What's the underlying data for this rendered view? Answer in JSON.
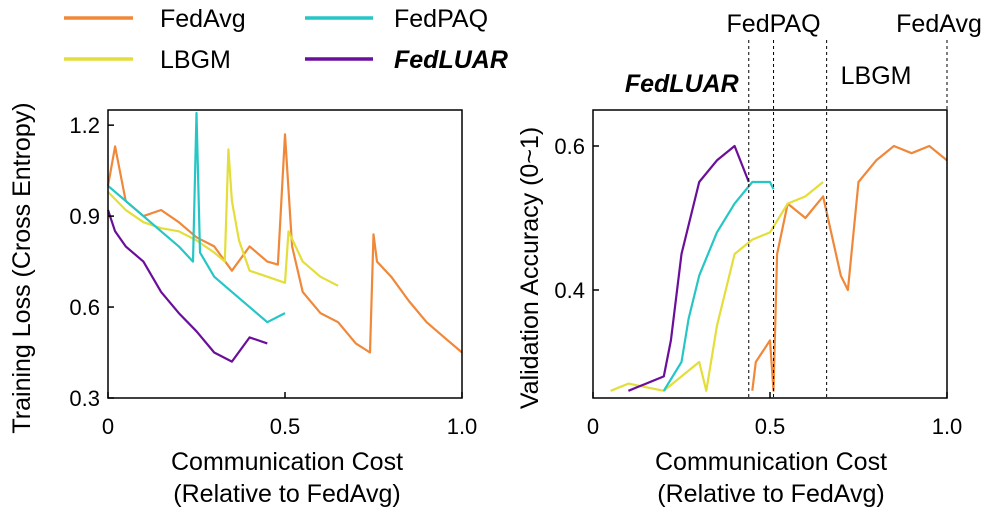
{
  "legend": {
    "entries": [
      {
        "label": "FedAvg",
        "color": "#F0883A",
        "emphasis": false
      },
      {
        "label": "FedPAQ",
        "color": "#26C6C6",
        "emphasis": false
      },
      {
        "label": "LBGM",
        "color": "#E4DE3A",
        "emphasis": false
      },
      {
        "label": "FedLUAR",
        "color": "#6A0F9A",
        "emphasis": true
      }
    ]
  },
  "chart_data": [
    {
      "type": "line",
      "xlabel": "Communication Cost",
      "xlabel2": "(Relative to FedAvg)",
      "ylabel": "Training Loss (Cross Entropy)",
      "xlim": [
        0,
        1.0
      ],
      "ylim": [
        0.3,
        1.25
      ],
      "xticks": [
        0,
        0.5,
        1.0
      ],
      "xtick_labels": [
        "0",
        "0.5",
        "1.0"
      ],
      "yticks": [
        0.3,
        0.6,
        0.9,
        1.2
      ],
      "ytick_labels": [
        "0.3",
        "0.6",
        "0.9",
        "1.2"
      ],
      "series": [
        {
          "name": "FedAvg",
          "color": "#F0883A",
          "x": [
            0.0,
            0.02,
            0.05,
            0.1,
            0.15,
            0.2,
            0.25,
            0.3,
            0.35,
            0.4,
            0.45,
            0.48,
            0.5,
            0.52,
            0.55,
            0.6,
            0.65,
            0.7,
            0.74,
            0.75,
            0.76,
            0.8,
            0.85,
            0.9,
            0.95,
            1.0
          ],
          "y": [
            1.0,
            1.13,
            0.95,
            0.9,
            0.92,
            0.88,
            0.83,
            0.8,
            0.72,
            0.8,
            0.75,
            0.74,
            1.17,
            0.8,
            0.65,
            0.58,
            0.55,
            0.48,
            0.45,
            0.84,
            0.75,
            0.7,
            0.62,
            0.55,
            0.5,
            0.45
          ]
        },
        {
          "name": "LBGM",
          "color": "#E4DE3A",
          "x": [
            0.0,
            0.05,
            0.1,
            0.15,
            0.2,
            0.25,
            0.3,
            0.33,
            0.34,
            0.35,
            0.37,
            0.4,
            0.45,
            0.5,
            0.51,
            0.55,
            0.6,
            0.65
          ],
          "y": [
            0.98,
            0.92,
            0.88,
            0.86,
            0.85,
            0.82,
            0.78,
            0.75,
            1.12,
            0.95,
            0.82,
            0.72,
            0.7,
            0.68,
            0.85,
            0.75,
            0.7,
            0.67
          ]
        },
        {
          "name": "FedPAQ",
          "color": "#26C6C6",
          "x": [
            0.0,
            0.02,
            0.05,
            0.1,
            0.15,
            0.2,
            0.24,
            0.25,
            0.26,
            0.3,
            0.35,
            0.4,
            0.45,
            0.5
          ],
          "y": [
            1.0,
            0.98,
            0.95,
            0.9,
            0.85,
            0.8,
            0.75,
            1.24,
            0.78,
            0.7,
            0.65,
            0.6,
            0.55,
            0.58
          ]
        },
        {
          "name": "FedLUAR",
          "color": "#6A0F9A",
          "x": [
            0.0,
            0.02,
            0.05,
            0.1,
            0.15,
            0.2,
            0.25,
            0.3,
            0.35,
            0.4,
            0.45
          ],
          "y": [
            0.92,
            0.85,
            0.8,
            0.75,
            0.65,
            0.58,
            0.52,
            0.45,
            0.42,
            0.5,
            0.48
          ]
        }
      ]
    },
    {
      "type": "line",
      "xlabel": "Communication Cost",
      "xlabel2": "(Relative to FedAvg)",
      "ylabel": "Validation Accuracy (0~1)",
      "xlim": [
        0,
        1.0
      ],
      "ylim": [
        0.25,
        0.65
      ],
      "xticks": [
        0,
        0.5,
        1.0
      ],
      "xtick_labels": [
        "0",
        "0.5",
        "1.0"
      ],
      "yticks": [
        0.4,
        0.6
      ],
      "ytick_labels": [
        "0.4",
        "0.6"
      ],
      "annotations": [
        {
          "label": "FedLUAR",
          "x": 0.44,
          "emphasis": true
        },
        {
          "label": "FedPAQ",
          "x": 0.51,
          "emphasis": false
        },
        {
          "label": "LBGM",
          "x": 0.66,
          "emphasis": false
        },
        {
          "label": "FedAvg",
          "x": 1.0,
          "emphasis": false
        }
      ],
      "series": [
        {
          "name": "FedAvg",
          "color": "#F0883A",
          "x": [
            0.45,
            0.46,
            0.5,
            0.51,
            0.52,
            0.55,
            0.6,
            0.65,
            0.7,
            0.72,
            0.75,
            0.8,
            0.85,
            0.9,
            0.95,
            1.0
          ],
          "y": [
            0.26,
            0.3,
            0.33,
            0.26,
            0.45,
            0.52,
            0.5,
            0.53,
            0.42,
            0.4,
            0.55,
            0.58,
            0.6,
            0.59,
            0.6,
            0.58
          ]
        },
        {
          "name": "LBGM",
          "color": "#E4DE3A",
          "x": [
            0.05,
            0.1,
            0.2,
            0.25,
            0.3,
            0.32,
            0.35,
            0.4,
            0.45,
            0.5,
            0.55,
            0.6,
            0.65
          ],
          "y": [
            0.26,
            0.27,
            0.26,
            0.28,
            0.3,
            0.26,
            0.35,
            0.45,
            0.47,
            0.48,
            0.52,
            0.53,
            0.55
          ]
        },
        {
          "name": "FedPAQ",
          "color": "#26C6C6",
          "x": [
            0.2,
            0.25,
            0.27,
            0.3,
            0.35,
            0.4,
            0.45,
            0.5,
            0.51
          ],
          "y": [
            0.26,
            0.3,
            0.36,
            0.42,
            0.48,
            0.52,
            0.55,
            0.55,
            0.54
          ]
        },
        {
          "name": "FedLUAR",
          "color": "#6A0F9A",
          "x": [
            0.1,
            0.15,
            0.2,
            0.22,
            0.25,
            0.3,
            0.35,
            0.4,
            0.44
          ],
          "y": [
            0.26,
            0.27,
            0.28,
            0.33,
            0.45,
            0.55,
            0.58,
            0.6,
            0.55
          ]
        }
      ]
    }
  ]
}
